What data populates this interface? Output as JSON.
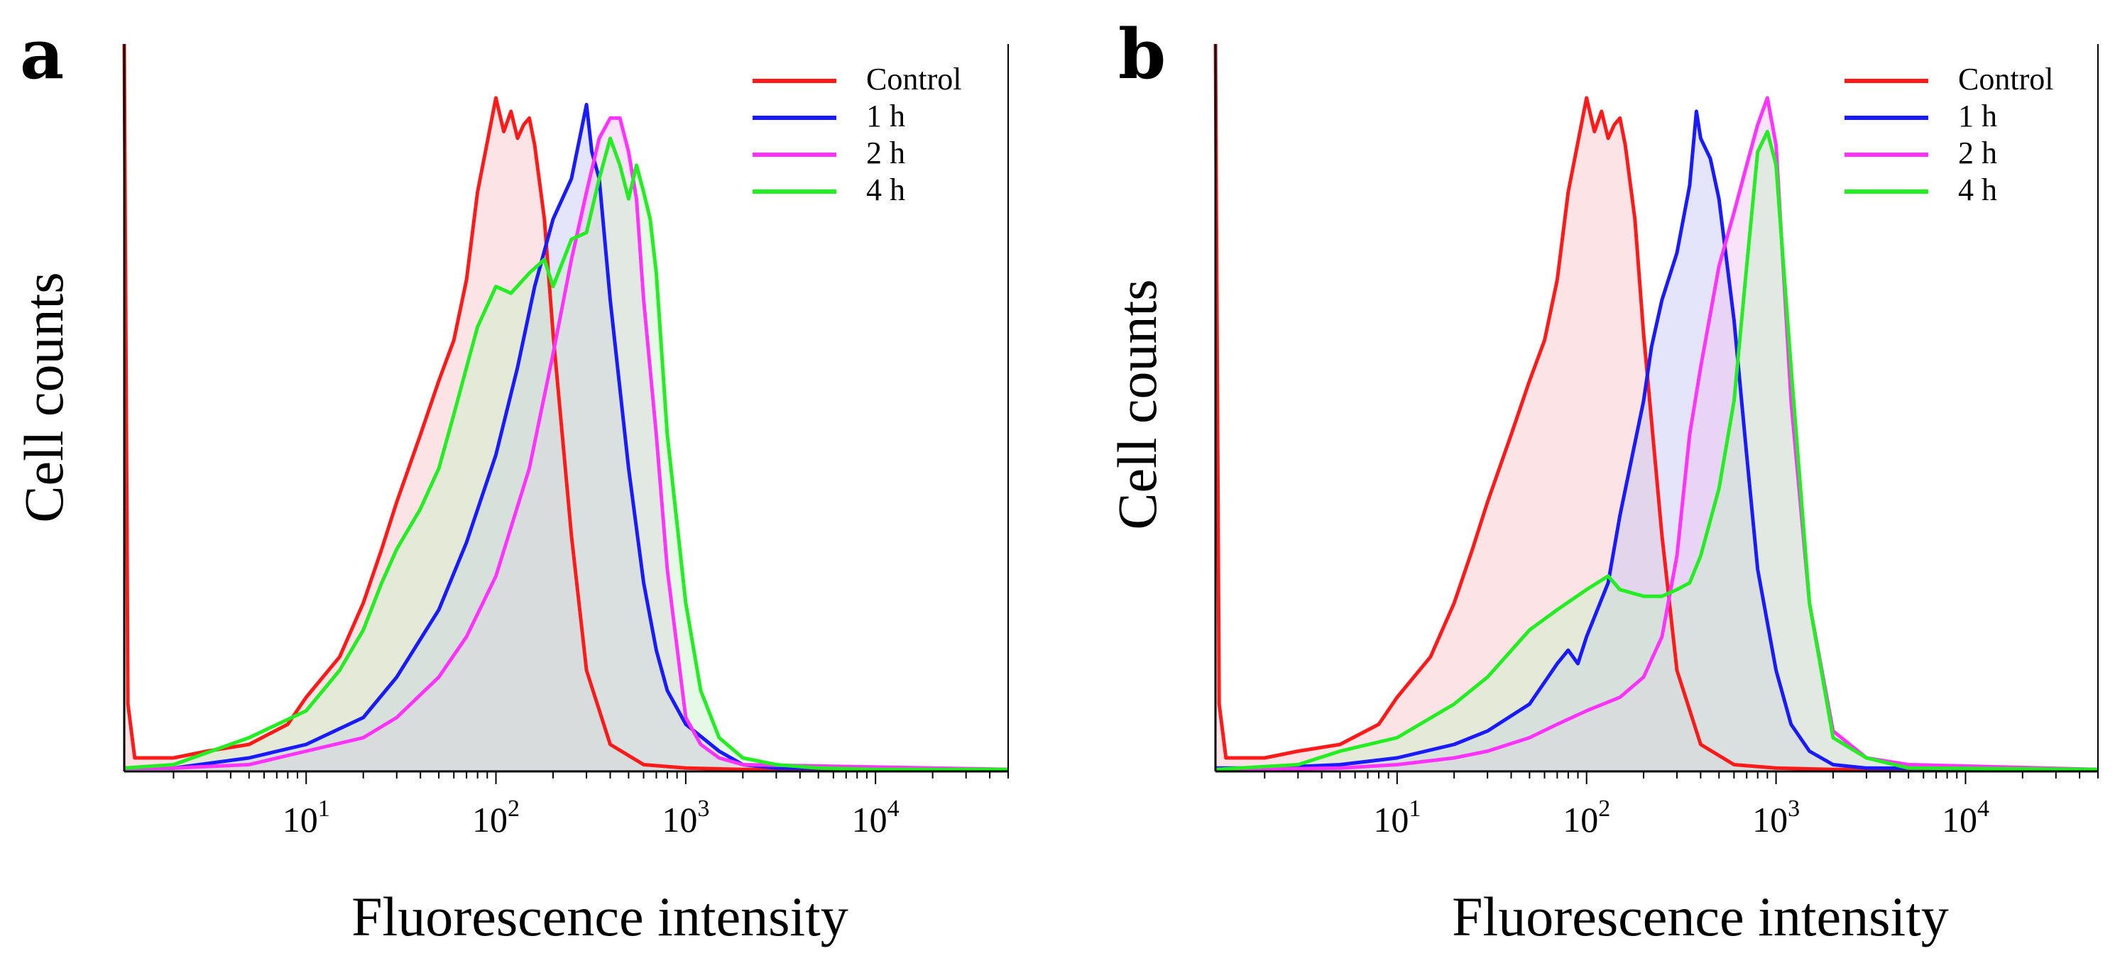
{
  "figure": {
    "ylabel": "Cell counts",
    "xlabel": "Fluorescence intensity",
    "xscale": "log",
    "xlim": [
      1.1,
      50000
    ],
    "ylim": [
      0,
      1.08
    ],
    "tick_bases": [
      "10",
      "10",
      "10",
      "10"
    ],
    "tick_exponents": [
      "1",
      "2",
      "3",
      "4"
    ],
    "tick_values": [
      10,
      100,
      1000,
      10000
    ],
    "legend_position": "top-right",
    "series_colors": {
      "Control": "#ff1a1a",
      "1 h": "#1a1aff",
      "2 h": "#ff33ff",
      "4 h": "#22ee22"
    },
    "fill_colors": {
      "Control": "#f6c0c8",
      "1 h": "#c4c4f4",
      "2 h": "#f0c0f0",
      "4 h": "#c8f0c8"
    }
  },
  "chart_data": [
    {
      "type": "area",
      "panel": "a",
      "title": "",
      "xlabel": "Fluorescence intensity",
      "ylabel": "Cell counts",
      "legend": [
        "Control",
        "1 h",
        "2 h",
        "4 h"
      ],
      "series": [
        {
          "name": "Control",
          "x": [
            1.1,
            1.15,
            1.25,
            2,
            3,
            5,
            8,
            10,
            15,
            20,
            25,
            30,
            40,
            50,
            60,
            70,
            80,
            100,
            110,
            120,
            130,
            140,
            150,
            160,
            180,
            200,
            250,
            300,
            400,
            600,
            1000,
            2000,
            50000
          ],
          "y": [
            1.08,
            0.1,
            0.02,
            0.02,
            0.03,
            0.04,
            0.07,
            0.11,
            0.17,
            0.25,
            0.33,
            0.4,
            0.5,
            0.58,
            0.64,
            0.73,
            0.86,
            1.0,
            0.95,
            0.98,
            0.94,
            0.96,
            0.97,
            0.93,
            0.82,
            0.65,
            0.35,
            0.15,
            0.04,
            0.01,
            0.005,
            0.003,
            0.003
          ]
        },
        {
          "name": "1 h",
          "x": [
            1.1,
            2,
            5,
            10,
            20,
            30,
            50,
            70,
            100,
            130,
            160,
            200,
            250,
            300,
            320,
            350,
            400,
            500,
            600,
            700,
            800,
            1000,
            1500,
            2000,
            3000,
            50000
          ],
          "y": [
            0.005,
            0.005,
            0.02,
            0.04,
            0.08,
            0.14,
            0.24,
            0.34,
            0.47,
            0.6,
            0.72,
            0.82,
            0.88,
            0.99,
            0.92,
            0.88,
            0.7,
            0.45,
            0.28,
            0.18,
            0.12,
            0.07,
            0.03,
            0.01,
            0.005,
            0.003
          ]
        },
        {
          "name": "2 h",
          "x": [
            1.1,
            2,
            5,
            10,
            20,
            30,
            50,
            70,
            100,
            150,
            200,
            250,
            300,
            350,
            400,
            450,
            500,
            550,
            600,
            700,
            800,
            1000,
            1200,
            1500,
            2000,
            50000
          ],
          "y": [
            0.005,
            0.005,
            0.01,
            0.03,
            0.05,
            0.08,
            0.14,
            0.2,
            0.29,
            0.45,
            0.62,
            0.76,
            0.86,
            0.94,
            0.97,
            0.97,
            0.92,
            0.85,
            0.7,
            0.5,
            0.3,
            0.08,
            0.04,
            0.02,
            0.01,
            0.003
          ]
        },
        {
          "name": "4 h",
          "x": [
            1.1,
            2,
            5,
            10,
            15,
            20,
            25,
            30,
            40,
            50,
            60,
            70,
            80,
            100,
            120,
            150,
            180,
            200,
            250,
            300,
            350,
            400,
            450,
            500,
            550,
            600,
            650,
            700,
            800,
            1000,
            1200,
            1500,
            2000,
            3000,
            5000,
            10000,
            50000
          ],
          "y": [
            0.005,
            0.01,
            0.05,
            0.09,
            0.15,
            0.21,
            0.28,
            0.33,
            0.39,
            0.45,
            0.53,
            0.6,
            0.66,
            0.72,
            0.71,
            0.74,
            0.76,
            0.72,
            0.79,
            0.8,
            0.88,
            0.94,
            0.9,
            0.85,
            0.9,
            0.86,
            0.82,
            0.74,
            0.5,
            0.25,
            0.12,
            0.05,
            0.02,
            0.01,
            0.005,
            0.003,
            0.003
          ]
        }
      ]
    },
    {
      "type": "area",
      "panel": "b",
      "title": "",
      "xlabel": "Fluorescence intensity",
      "ylabel": "Cell counts",
      "legend": [
        "Control",
        "1 h",
        "2 h",
        "4 h"
      ],
      "series": [
        {
          "name": "Control",
          "x": [
            1.1,
            1.15,
            1.25,
            2,
            3,
            5,
            8,
            10,
            15,
            20,
            25,
            30,
            40,
            50,
            60,
            70,
            80,
            100,
            110,
            120,
            130,
            140,
            150,
            160,
            180,
            200,
            250,
            300,
            400,
            600,
            1000,
            2000,
            50000
          ],
          "y": [
            1.08,
            0.1,
            0.02,
            0.02,
            0.03,
            0.04,
            0.07,
            0.11,
            0.17,
            0.25,
            0.33,
            0.4,
            0.5,
            0.58,
            0.64,
            0.73,
            0.86,
            1.0,
            0.95,
            0.98,
            0.94,
            0.96,
            0.97,
            0.93,
            0.82,
            0.65,
            0.35,
            0.15,
            0.04,
            0.01,
            0.005,
            0.003,
            0.003
          ]
        },
        {
          "name": "1 h",
          "x": [
            1.1,
            2,
            5,
            10,
            20,
            30,
            50,
            70,
            80,
            90,
            100,
            130,
            150,
            200,
            220,
            250,
            300,
            350,
            380,
            400,
            450,
            500,
            600,
            700,
            800,
            1000,
            1200,
            1500,
            2000,
            3000,
            50000
          ],
          "y": [
            0.005,
            0.005,
            0.01,
            0.02,
            0.04,
            0.06,
            0.1,
            0.16,
            0.18,
            0.16,
            0.2,
            0.28,
            0.38,
            0.55,
            0.63,
            0.7,
            0.77,
            0.87,
            0.98,
            0.94,
            0.91,
            0.85,
            0.67,
            0.47,
            0.3,
            0.15,
            0.07,
            0.03,
            0.01,
            0.005,
            0.003
          ]
        },
        {
          "name": "2 h",
          "x": [
            1.1,
            5,
            10,
            20,
            30,
            50,
            70,
            100,
            150,
            200,
            250,
            300,
            350,
            400,
            500,
            600,
            700,
            800,
            900,
            1000,
            1200,
            1500,
            2000,
            3000,
            5000,
            50000
          ],
          "y": [
            0.002,
            0.005,
            0.01,
            0.02,
            0.03,
            0.05,
            0.07,
            0.09,
            0.11,
            0.14,
            0.2,
            0.32,
            0.5,
            0.6,
            0.75,
            0.83,
            0.9,
            0.96,
            1.0,
            0.93,
            0.55,
            0.25,
            0.06,
            0.02,
            0.01,
            0.003
          ]
        },
        {
          "name": "4 h",
          "x": [
            1.1,
            3,
            5,
            10,
            20,
            30,
            50,
            70,
            100,
            130,
            150,
            200,
            250,
            300,
            350,
            400,
            500,
            600,
            700,
            800,
            900,
            1000,
            1200,
            1500,
            2000,
            3000,
            5000,
            50000
          ],
          "y": [
            0.003,
            0.01,
            0.03,
            0.05,
            0.1,
            0.14,
            0.21,
            0.24,
            0.27,
            0.29,
            0.27,
            0.26,
            0.26,
            0.27,
            0.28,
            0.32,
            0.42,
            0.55,
            0.75,
            0.92,
            0.95,
            0.9,
            0.6,
            0.25,
            0.05,
            0.02,
            0.005,
            0.003
          ]
        }
      ]
    }
  ]
}
